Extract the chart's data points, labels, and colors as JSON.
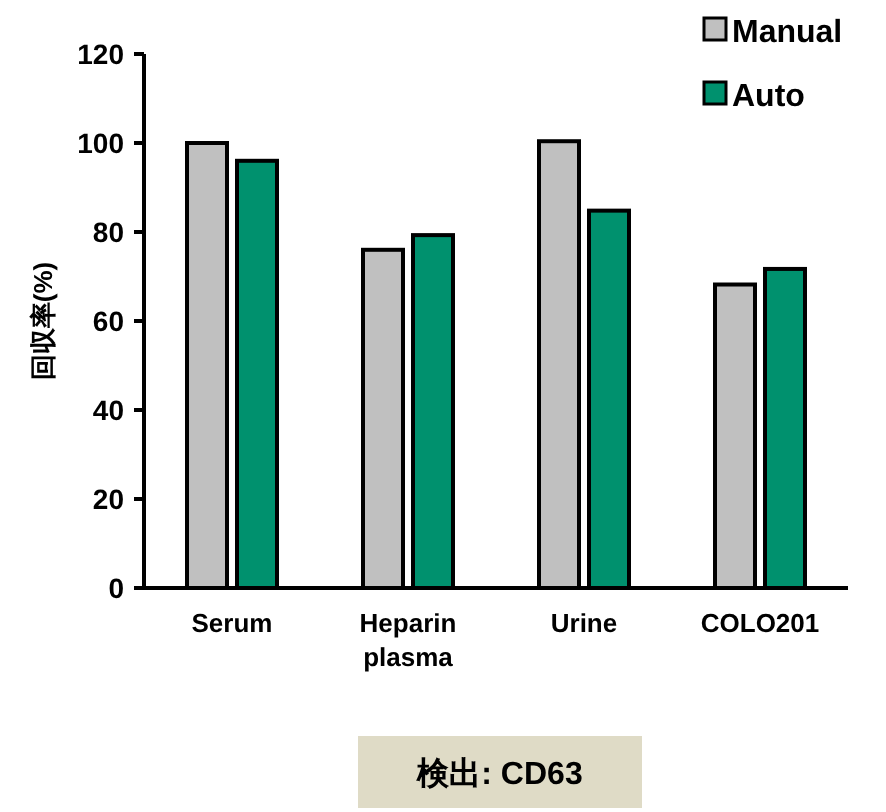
{
  "chart_data": {
    "type": "bar",
    "ylabel": "回収率(%)",
    "categories": [
      "Serum",
      "Heparin\nplasma",
      "Urine",
      "COLO201"
    ],
    "series": [
      {
        "name": "Manual",
        "color": "#c0c0c0",
        "values": [
          100,
          76,
          100.4,
          68.2
        ]
      },
      {
        "name": "Auto",
        "color": "#00916e",
        "values": [
          96,
          79.3,
          84.8,
          71.7
        ]
      }
    ],
    "ylim": [
      0,
      120
    ],
    "yticks": [
      0,
      20,
      40,
      60,
      80,
      100,
      120
    ],
    "grid": false,
    "legend": "top right",
    "annotations": [
      "検出: CD63"
    ]
  }
}
